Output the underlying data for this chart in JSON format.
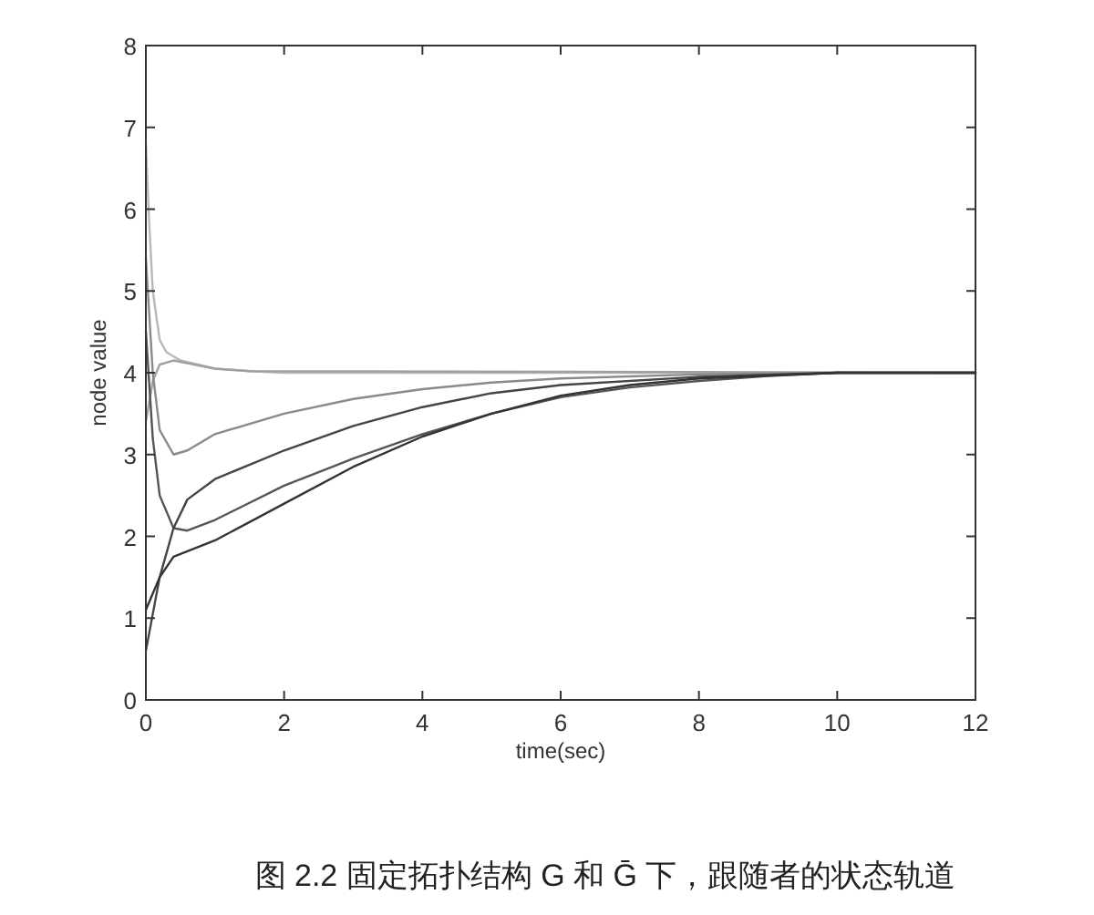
{
  "chart_data": {
    "type": "line",
    "xlabel": "time(sec)",
    "ylabel": "node value",
    "annotations": [
      "图 2.2 固定拓扑结构 G 和 Ḡ 下，跟随者的状态轨道"
    ],
    "xlim": [
      0,
      12
    ],
    "ylim": [
      0,
      8
    ],
    "xticks": [
      0,
      2,
      4,
      6,
      8,
      10,
      12
    ],
    "yticks": [
      0,
      1,
      2,
      3,
      4,
      5,
      6,
      7,
      8
    ],
    "line_style": "solid",
    "series": [
      {
        "color": "#b8b8b8",
        "x": [
          0,
          0.05,
          0.1,
          0.2,
          0.3,
          0.5,
          1,
          1.5,
          2,
          12
        ],
        "values": [
          6.8,
          5.8,
          5.0,
          4.4,
          4.25,
          4.15,
          4.05,
          4.02,
          4.0,
          4.0
        ]
      },
      {
        "color": "#a0a0a0",
        "x": [
          0,
          0.1,
          0.2,
          0.4,
          0.7,
          1,
          1.5,
          12
        ],
        "values": [
          3.4,
          3.9,
          4.1,
          4.15,
          4.1,
          4.05,
          4.02,
          4.0
        ]
      },
      {
        "color": "#8a8a8a",
        "x": [
          0,
          0.1,
          0.2,
          0.4,
          0.6,
          1,
          2,
          3,
          4,
          5,
          6,
          8,
          10,
          12
        ],
        "values": [
          5.4,
          4.0,
          3.3,
          3.0,
          3.05,
          3.25,
          3.5,
          3.68,
          3.8,
          3.88,
          3.93,
          3.98,
          4.0,
          4.0
        ]
      },
      {
        "color": "#555555",
        "x": [
          0,
          0.1,
          0.2,
          0.4,
          0.6,
          1,
          2,
          3,
          4,
          5,
          6,
          7,
          8,
          9,
          10,
          12
        ],
        "values": [
          4.5,
          3.2,
          2.5,
          2.1,
          2.07,
          2.2,
          2.62,
          2.95,
          3.25,
          3.5,
          3.7,
          3.82,
          3.9,
          3.96,
          4.0,
          4.0
        ]
      },
      {
        "color": "#444444",
        "x": [
          0,
          0.2,
          0.4,
          0.6,
          1,
          2,
          3,
          4,
          5,
          6,
          8,
          10,
          12
        ],
        "values": [
          0.6,
          1.5,
          2.1,
          2.45,
          2.7,
          3.05,
          3.35,
          3.58,
          3.75,
          3.85,
          3.95,
          4.0,
          4.0
        ]
      },
      {
        "color": "#333333",
        "x": [
          0,
          0.2,
          0.4,
          1,
          2,
          3,
          4,
          5,
          6,
          7,
          8,
          10,
          12
        ],
        "values": [
          1.1,
          1.5,
          1.75,
          1.95,
          2.4,
          2.85,
          3.22,
          3.5,
          3.72,
          3.85,
          3.93,
          4.0,
          4.0
        ]
      }
    ]
  }
}
